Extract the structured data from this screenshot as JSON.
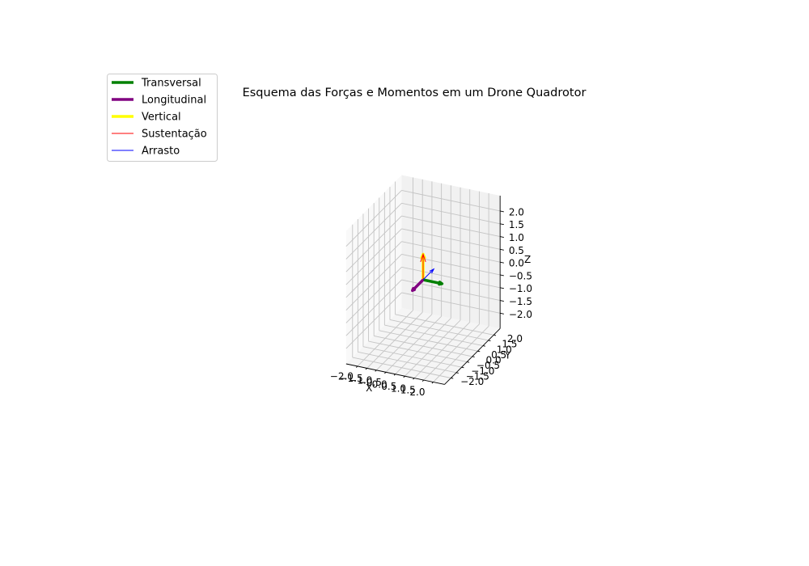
{
  "chart_data": {
    "type": "3d-quiver",
    "title": "Esquema das Forças e Momentos em um Drone Quadrotor",
    "xlabel": "X",
    "ylabel": "Y",
    "zlabel": "Z",
    "xlim": [
      -2,
      2
    ],
    "ylim": [
      -2,
      2
    ],
    "zlim": [
      -2,
      2
    ],
    "x_ticks": [
      "−2.0",
      "−1.5",
      "−1.0",
      "−0.5",
      "0.0",
      "0.5",
      "1.0",
      "1.5",
      "2.0"
    ],
    "y_ticks": [
      "−2.0",
      "−1.5",
      "−1.0",
      "−0.5",
      "0.0",
      "0.5",
      "1.0",
      "1.5",
      "2.0"
    ],
    "z_ticks": [
      "−2.0",
      "−1.5",
      "−1.0",
      "−0.5",
      "0.0",
      "0.5",
      "1.0",
      "1.5",
      "2.0"
    ],
    "grid": true,
    "legend_position": "upper-left",
    "origin": [
      0,
      0,
      0
    ],
    "series": [
      {
        "name": "Transversal",
        "color": "#008000",
        "vector": [
          1,
          0,
          0
        ],
        "linewidth": 3.5
      },
      {
        "name": "Longitudinal",
        "color": "#800080",
        "vector": [
          0,
          -1,
          0
        ],
        "linewidth": 3.5
      },
      {
        "name": "Vertical",
        "color": "#ffff00",
        "vector": [
          0,
          0,
          1
        ],
        "linewidth": 3.5
      },
      {
        "name": "Sustentação",
        "color": "#ff0000",
        "vector": [
          0,
          0,
          1
        ],
        "linewidth": 1
      },
      {
        "name": "Arrasto",
        "color": "#0000ff",
        "vector": [
          0,
          1,
          0
        ],
        "linewidth": 1
      }
    ]
  }
}
